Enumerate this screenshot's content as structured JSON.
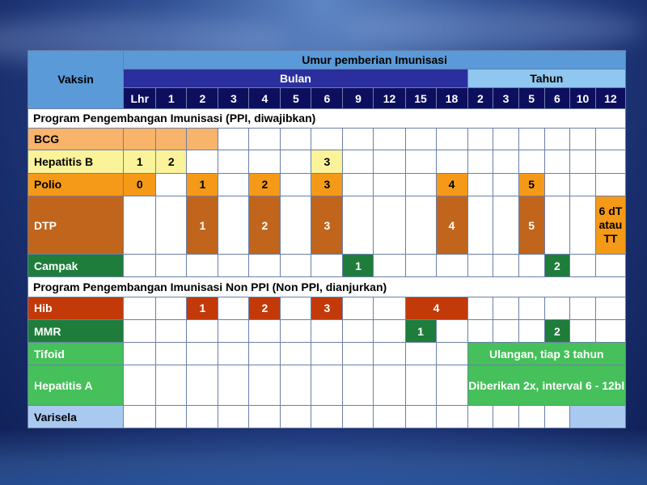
{
  "header": {
    "vaksin": "Vaksin",
    "umur": "Umur pemberian Imunisasi",
    "bulan": "Bulan",
    "tahun": "Tahun",
    "months": [
      "Lhr",
      "1",
      "2",
      "3",
      "4",
      "5",
      "6",
      "9",
      "12",
      "15",
      "18"
    ],
    "years": [
      "2",
      "3",
      "5",
      "6",
      "10",
      "12"
    ]
  },
  "sections": {
    "ppi": "Program Pengembangan Imunisasi (PPI, diwajibkan)",
    "non_ppi": "Program Pengembangan Imunisasi Non PPI (Non PPI, dianjurkan)"
  },
  "rows": {
    "bcg": {
      "name": "BCG"
    },
    "hepb": {
      "name": "Hepatitis B",
      "v1": "1",
      "v2": "2",
      "v3": "3"
    },
    "polio": {
      "name": "Polio",
      "v0": "0",
      "v1": "1",
      "v2": "2",
      "v3": "3",
      "v4": "4",
      "v5": "5"
    },
    "dtp": {
      "name": "DTP",
      "v1": "1",
      "v2": "2",
      "v3": "3",
      "v4": "4",
      "v5": "5",
      "v6": "6 dT atau TT"
    },
    "campak": {
      "name": "Campak",
      "v1": "1",
      "v2": "2"
    },
    "hib": {
      "name": "Hib",
      "v1": "1",
      "v2": "2",
      "v3": "3",
      "v4": "4"
    },
    "mmr": {
      "name": "MMR",
      "v1": "1",
      "v2": "2"
    },
    "tifoid": {
      "name": "Tifoid",
      "note": "Ulangan, tiap 3 tahun"
    },
    "hepa": {
      "name": "Hepatitis A",
      "note": "Diberikan 2x, interval 6 - 12bl"
    },
    "varisela": {
      "name": "Varisela"
    }
  },
  "colors": {
    "header_bulan": "#2b2f9e",
    "header_tahun": "#8fc7f0",
    "header_numbers": "#0d0f5e",
    "bcg": "#f8b46a",
    "hepatitis_b": "#fbf39a",
    "polio": "#f59a18",
    "dtp": "#c0651b",
    "campak": "#1e7d3a",
    "hib": "#c23a0a",
    "mmr": "#1e7d3a",
    "tifoid": "#45c05a",
    "hepatitis_a": "#45c05a",
    "varisela": "#a9c9f0"
  }
}
